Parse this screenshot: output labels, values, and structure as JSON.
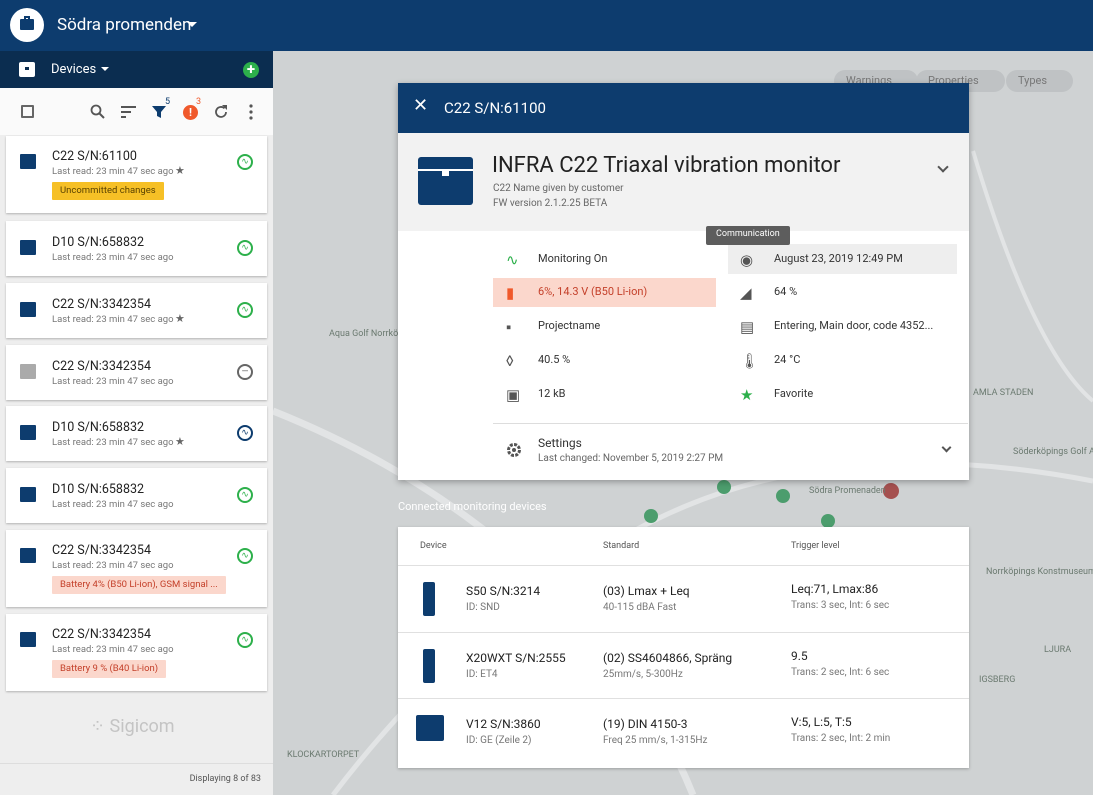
{
  "header": {
    "project": "Södra promenden"
  },
  "sidebar": {
    "title": "Devices",
    "filter_badge": "5",
    "warning_badge": "3",
    "devices": [
      {
        "name": "C22 S/N:61100",
        "last_read": "Last read: 23 min 47 sec ago",
        "starred": true,
        "status": "ok",
        "tag": "Uncommitted changes",
        "tag_kind": "warn"
      },
      {
        "name": "D10 S/N:658832",
        "last_read": "Last read: 23 min 47 sec ago",
        "starred": false,
        "status": "ok"
      },
      {
        "name": "C22 S/N:3342354",
        "last_read": "Last read: 23 min 47 sec ago",
        "starred": true,
        "status": "ok"
      },
      {
        "name": "C22 S/N:3342354",
        "last_read": "Last read: 23 min 47 sec ago",
        "starred": false,
        "status": "off"
      },
      {
        "name": "D10 S/N:658832",
        "last_read": "Last read: 23 min 47 sec ago",
        "starred": true,
        "status": "active"
      },
      {
        "name": "D10 S/N:658832",
        "last_read": "Last read: 23 min 47 sec ago",
        "starred": false,
        "status": "ok"
      },
      {
        "name": "C22 S/N:3342354",
        "last_read": "Last read: 23 min 47 sec ago",
        "starred": false,
        "status": "ok",
        "tag": "Battery 4% (B50 Li-ion), GSM signal ...",
        "tag_kind": "error"
      },
      {
        "name": "C22 S/N:3342354",
        "last_read": "Last read: 23 min 47 sec ago",
        "starred": false,
        "status": "ok",
        "tag": "Battery 9 % (B40 Li-ion)",
        "tag_kind": "error"
      }
    ],
    "logo": "Sigicom",
    "footer": "Displaying 8 of 83"
  },
  "map": {
    "filters": [
      "Warnings",
      "Properties",
      "Types"
    ],
    "labels": [
      "Aqua Golf Norrköping",
      "KLOCKARTORPET",
      "AMLA STADEN",
      "LJURA",
      "Söderköpings Golf AB",
      "Norrköpings Konstmuseum",
      "IGSBERG",
      "Södra Promenaden"
    ]
  },
  "panel": {
    "title": "C22 S/N:61100",
    "device_name": "INFRA C22 Triaxal vibration monitor",
    "custom_name": "C22 Name given by customer",
    "fw": "FW version 2.1.2.25 BETA",
    "tooltip": "Communication",
    "left": [
      "Monitoring On",
      "6%, 14.3 V (B50 Li-ion)",
      "Projectname",
      "40.5 %",
      "12 kB"
    ],
    "right": [
      "August 23, 2019 12:49 PM",
      "64 %",
      "Entering, Main door, code 4352...",
      "24 °C",
      "Favorite"
    ],
    "settings": {
      "title": "Settings",
      "changed": "Last changed: November 5, 2019 2:27 PM"
    }
  },
  "connected": {
    "title": "Connected monitoring devices",
    "headers": [
      "Device",
      "Standard",
      "Trigger level"
    ],
    "rows": [
      {
        "device": "S50 S/N:3214",
        "id": "ID: SND",
        "standard": "(03) Lmax + Leq",
        "standard_sub": "40-115 dBA Fast",
        "trigger": "Leq:71, Lmax:86",
        "trigger_sub": "Trans: 3 sec, Int: 6 sec"
      },
      {
        "device": "X20WXT S/N:2555",
        "id": "ID: ET4",
        "standard": "(02) SS4604866, Spräng",
        "standard_sub": "25mm/s, 5-300Hz",
        "trigger": "9.5",
        "trigger_sub": "Trans: 2 sec, Int: 6 sec"
      },
      {
        "device": "V12 S/N:3860",
        "id": "ID: GE (Zeile 2)",
        "standard": "(19) DIN 4150-3",
        "standard_sub": "Freq 25 mm/s, 1-315Hz",
        "trigger": "V:5, L:5, T:5",
        "trigger_sub": "Trans: 2 sec, Int: 2 min"
      }
    ]
  }
}
